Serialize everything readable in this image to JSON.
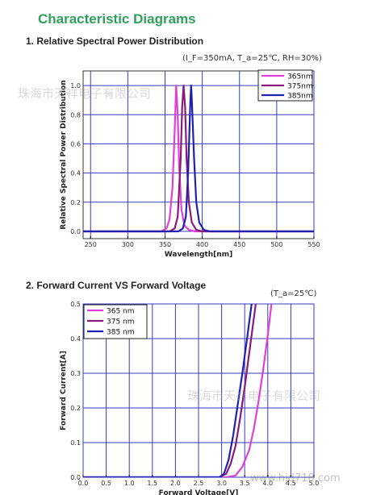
{
  "heading": "Characteristic Diagrams",
  "watermark": "珠海市天祥电子有限公司",
  "site_watermark": "www.hjd718.com",
  "chart_data": [
    {
      "type": "line",
      "title": "1. Relative Spectral Power Distribution",
      "subtitle": "(I_F=350mA, T_a=25℃, RH=30%)",
      "xlabel": "Wavelength[nm]",
      "ylabel": "Relative Spectral Power Distribution",
      "xlim": [
        240,
        550
      ],
      "ylim": [
        -0.05,
        1.1
      ],
      "xticks": [
        250,
        300,
        350,
        400,
        450,
        500,
        550
      ],
      "yticks": [
        0.0,
        0.2,
        0.4,
        0.6,
        0.8,
        1.0
      ],
      "ytick_labels": [
        "0.0",
        "0.2",
        "0.4",
        "0.6",
        "0.8",
        "1.0"
      ],
      "grid": true,
      "legend_position": "top-right",
      "series": [
        {
          "name": "365nm",
          "color": "#e040d8",
          "points": [
            [
              240,
              0
            ],
            [
              345,
              0
            ],
            [
              352,
              0.02
            ],
            [
              356,
              0.08
            ],
            [
              360,
              0.3
            ],
            [
              363,
              0.7
            ],
            [
              365,
              1.0
            ],
            [
              367,
              0.8
            ],
            [
              369,
              0.45
            ],
            [
              372,
              0.15
            ],
            [
              376,
              0.04
            ],
            [
              382,
              0.01
            ],
            [
              390,
              0
            ],
            [
              550,
              0
            ]
          ]
        },
        {
          "name": "375nm",
          "color": "#8b1a7a",
          "points": [
            [
              240,
              0
            ],
            [
              356,
              0
            ],
            [
              363,
              0.02
            ],
            [
              367,
              0.1
            ],
            [
              371,
              0.5
            ],
            [
              373,
              0.85
            ],
            [
              375,
              1.0
            ],
            [
              377,
              0.85
            ],
            [
              379,
              0.5
            ],
            [
              382,
              0.2
            ],
            [
              386,
              0.06
            ],
            [
              392,
              0.01
            ],
            [
              400,
              0
            ],
            [
              550,
              0
            ]
          ]
        },
        {
          "name": "385nm",
          "color": "#2020b0",
          "points": [
            [
              240,
              0
            ],
            [
              368,
              0
            ],
            [
              374,
              0.02
            ],
            [
              378,
              0.1
            ],
            [
              381,
              0.4
            ],
            [
              384,
              0.9
            ],
            [
              385,
              1.0
            ],
            [
              386,
              0.9
            ],
            [
              389,
              0.5
            ],
            [
              392,
              0.2
            ],
            [
              396,
              0.06
            ],
            [
              402,
              0.01
            ],
            [
              410,
              0
            ],
            [
              550,
              0
            ]
          ]
        }
      ]
    },
    {
      "type": "line",
      "title": "2. Forward Current VS Forward Voltage",
      "subtitle": "(T_a=25℃)",
      "xlabel": "Forward Voltage[V]",
      "ylabel": "Forward Current[A]",
      "xlim": [
        0,
        5.0
      ],
      "ylim": [
        0,
        0.5
      ],
      "xticks": [
        0.0,
        0.5,
        1.0,
        1.5,
        2.0,
        2.5,
        3.0,
        3.5,
        4.0,
        4.5,
        5.0
      ],
      "xtick_labels": [
        "0.0",
        "0.5",
        "1.0",
        "1.5",
        "2.0",
        "2.5",
        "3.0",
        "3.5",
        "4.0",
        "4.5",
        "5.0"
      ],
      "yticks": [
        0.0,
        0.1,
        0.2,
        0.3,
        0.4,
        0.5
      ],
      "ytick_labels": [
        "0.0",
        "0.1",
        "0.2",
        "0.3",
        "0.4",
        "0.5"
      ],
      "grid": true,
      "legend_position": "top-left",
      "series": [
        {
          "name": "365 nm",
          "color": "#e040d8",
          "points": [
            [
              0,
              0
            ],
            [
              3.1,
              0
            ],
            [
              3.3,
              0.005
            ],
            [
              3.45,
              0.03
            ],
            [
              3.6,
              0.08
            ],
            [
              3.7,
              0.14
            ],
            [
              3.8,
              0.22
            ],
            [
              3.9,
              0.31
            ],
            [
              4.0,
              0.41
            ],
            [
              4.08,
              0.5
            ]
          ]
        },
        {
          "name": "375 nm",
          "color": "#8b1a7a",
          "points": [
            [
              0,
              0
            ],
            [
              2.95,
              0
            ],
            [
              3.1,
              0.01
            ],
            [
              3.2,
              0.04
            ],
            [
              3.3,
              0.09
            ],
            [
              3.4,
              0.17
            ],
            [
              3.5,
              0.26
            ],
            [
              3.6,
              0.36
            ],
            [
              3.7,
              0.46
            ],
            [
              3.74,
              0.5
            ]
          ]
        },
        {
          "name": "385 nm",
          "color": "#2020b0",
          "points": [
            [
              0,
              0
            ],
            [
              2.95,
              0
            ],
            [
              3.05,
              0.01
            ],
            [
              3.15,
              0.05
            ],
            [
              3.25,
              0.12
            ],
            [
              3.35,
              0.21
            ],
            [
              3.45,
              0.3
            ],
            [
              3.55,
              0.4
            ],
            [
              3.65,
              0.5
            ]
          ]
        }
      ]
    }
  ]
}
